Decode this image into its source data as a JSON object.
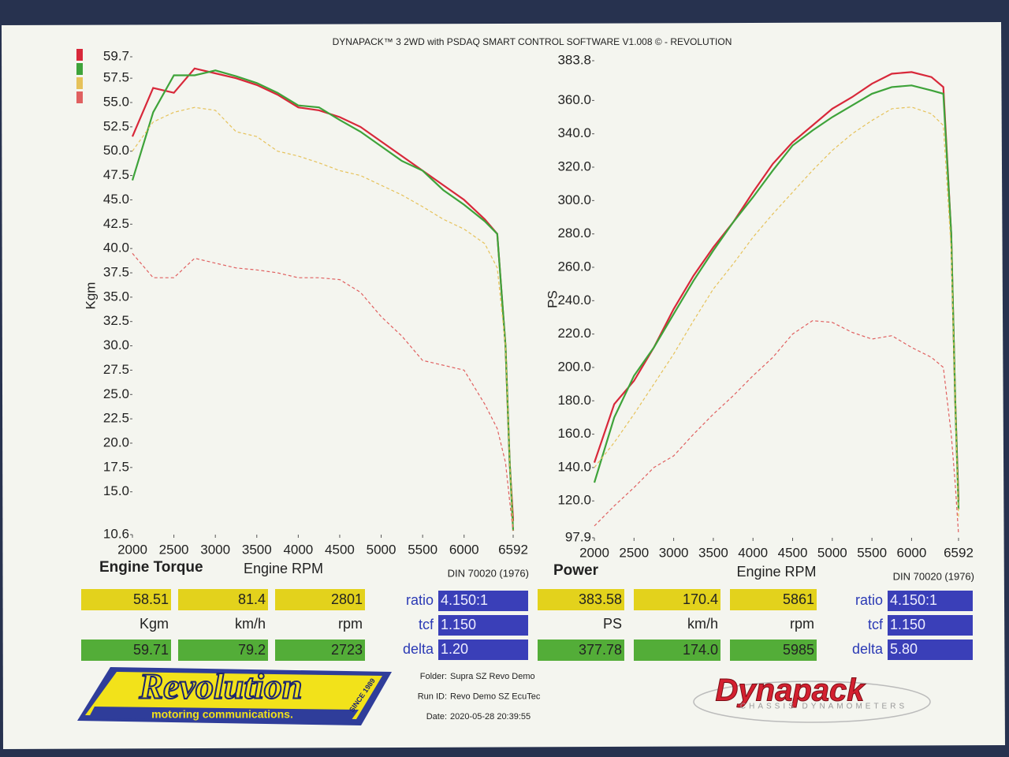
{
  "header": {
    "title": "DYNAPACK™ 3 2WD with PSDAQ SMART CONTROL SOFTWARE V1.008 © - REVOLUTION"
  },
  "chart_data": [
    {
      "type": "line",
      "title": "Engine Torque",
      "x_label": "Engine RPM",
      "y_label": "Kgm",
      "note": "DIN 70020 (1976)",
      "x": [
        2000,
        2250,
        2500,
        2750,
        3000,
        3250,
        3500,
        3750,
        4000,
        4250,
        4500,
        4750,
        5000,
        5250,
        5500,
        5750,
        6000,
        6250,
        6400,
        6500,
        6550,
        6592
      ],
      "xlim": [
        2000,
        6592
      ],
      "xticks": [
        2000,
        2500,
        3000,
        3500,
        4000,
        4500,
        5000,
        5500,
        6000,
        6592
      ],
      "ylim": [
        10.6,
        59.7
      ],
      "yticks": [
        59.7,
        57.5,
        {
          "value": 55,
          "label": "55.0"
        },
        52.5,
        {
          "value": 50,
          "label": "50.0"
        },
        47.5,
        {
          "value": 45,
          "label": "45.0"
        },
        42.5,
        {
          "value": 40,
          "label": "40.0"
        },
        37.5,
        {
          "value": 35,
          "label": "35.0"
        },
        32.5,
        {
          "value": 30,
          "label": "30.0"
        },
        27.5,
        {
          "value": 25,
          "label": "25.0"
        },
        22.5,
        {
          "value": 20,
          "label": "20.0"
        },
        17.5,
        {
          "value": 15,
          "label": "15.0"
        },
        10.6
      ],
      "grid": false,
      "series": [
        {
          "color": "#d8283a",
          "dashed": false,
          "values": [
            51.5,
            56.5,
            56,
            58.5,
            58,
            57.5,
            56.8,
            55.8,
            54.5,
            54.2,
            53.5,
            52.5,
            51,
            49.5,
            48,
            46.5,
            45,
            43,
            41.5,
            30,
            18,
            12
          ]
        },
        {
          "color": "#3ea33a",
          "dashed": false,
          "values": [
            47,
            54,
            57.8,
            57.8,
            58.3,
            57.7,
            57,
            56,
            54.7,
            54.5,
            53.2,
            52,
            50.5,
            49,
            48,
            46,
            44.5,
            42.8,
            41.5,
            30,
            18,
            11
          ]
        },
        {
          "color": "#e6c25a",
          "dashed": true,
          "values": [
            50,
            53,
            54,
            54.5,
            54.2,
            52,
            51.5,
            50,
            49.5,
            48.8,
            48,
            47.5,
            46.5,
            45.5,
            44.3,
            43,
            42,
            40.5,
            38,
            30,
            18,
            11
          ]
        },
        {
          "color": "#e06060",
          "dashed": true,
          "values": [
            39.5,
            37,
            37,
            39,
            38.5,
            38,
            37.8,
            37.5,
            37,
            37,
            36.8,
            35.5,
            33,
            31,
            28.5,
            28,
            27.5,
            24,
            21.5,
            18,
            14,
            11
          ]
        }
      ]
    },
    {
      "type": "line",
      "title": "Power",
      "x_label": "Engine RPM",
      "y_label": "PS",
      "note": "DIN 70020 (1976)",
      "x": [
        2000,
        2250,
        2500,
        2750,
        3000,
        3250,
        3500,
        3750,
        4000,
        4250,
        4500,
        4750,
        5000,
        5250,
        5500,
        5750,
        6000,
        6250,
        6400,
        6500,
        6550,
        6592
      ],
      "xlim": [
        2000,
        6592
      ],
      "xticks": [
        2000,
        2500,
        3000,
        3500,
        4000,
        4500,
        5000,
        5500,
        6000,
        6592
      ],
      "ylim": [
        97.9,
        383.8
      ],
      "yticks": [
        383.8,
        {
          "value": 360,
          "label": "360.0"
        },
        {
          "value": 340,
          "label": "340.0"
        },
        {
          "value": 320,
          "label": "320.0"
        },
        {
          "value": 300,
          "label": "300.0"
        },
        {
          "value": 280,
          "label": "280.0"
        },
        {
          "value": 260,
          "label": "260.0"
        },
        {
          "value": 240,
          "label": "240.0"
        },
        {
          "value": 220,
          "label": "220.0"
        },
        {
          "value": 200,
          "label": "200.0"
        },
        {
          "value": 180,
          "label": "180.0"
        },
        {
          "value": 160,
          "label": "160.0"
        },
        {
          "value": 140,
          "label": "140.0"
        },
        {
          "value": 120,
          "label": "120.0"
        },
        97.9
      ],
      "grid": false,
      "series": [
        {
          "color": "#d8283a",
          "dashed": false,
          "values": [
            143,
            178,
            192,
            212,
            235,
            255,
            272,
            287,
            305,
            322,
            335,
            345,
            355,
            362,
            370,
            376,
            377,
            374,
            368,
            280,
            180,
            120
          ]
        },
        {
          "color": "#3ea33a",
          "dashed": false,
          "values": [
            131,
            170,
            195,
            212,
            232,
            252,
            270,
            287,
            302,
            318,
            333,
            342,
            350,
            357,
            364,
            368,
            369,
            366,
            364,
            280,
            180,
            115
          ]
        },
        {
          "color": "#e6c25a",
          "dashed": true,
          "values": [
            140,
            155,
            172,
            190,
            208,
            228,
            247,
            262,
            278,
            292,
            305,
            318,
            330,
            340,
            348,
            355,
            356,
            352,
            345,
            270,
            180,
            110
          ]
        },
        {
          "color": "#e06060",
          "dashed": true,
          "values": [
            105,
            117,
            128,
            140,
            147,
            160,
            172,
            183,
            195,
            206,
            220,
            228,
            227,
            221,
            217,
            219,
            212,
            206,
            200,
            160,
            130,
            100
          ]
        }
      ]
    }
  ],
  "readouts": [
    {
      "run1": [
        "58.51",
        "81.4",
        "2801"
      ],
      "units": [
        "Kgm",
        "km/h",
        "rpm"
      ],
      "run2": [
        "59.71",
        "79.2",
        "2723"
      ],
      "params": [
        {
          "label": "ratio",
          "value": "4.150:1"
        },
        {
          "label": "tcf",
          "value": "1.150"
        },
        {
          "label": "delta",
          "value": "1.20"
        }
      ]
    },
    {
      "run1": [
        "383.58",
        "170.4",
        "5861"
      ],
      "units": [
        "PS",
        "km/h",
        "rpm"
      ],
      "run2": [
        "377.78",
        "174.0",
        "5985"
      ],
      "params": [
        {
          "label": "ratio",
          "value": "4.150:1"
        },
        {
          "label": "tcf",
          "value": "1.150"
        },
        {
          "label": "delta",
          "value": "5.80"
        }
      ]
    }
  ],
  "footer": [
    {
      "label": "Folder:",
      "value": "Supra SZ Revo Demo"
    },
    {
      "label": "Run ID:",
      "value": "Revo Demo SZ EcuTec"
    },
    {
      "label": "Date:",
      "value": "2020-05-28 20:39:55"
    }
  ],
  "logos": {
    "revolution": "Revolution",
    "revolution_tagline": "motoring communications.",
    "revolution_since": "SINCE 1989",
    "dynapack": "Dynapack",
    "dynapack_tagline": "CHASSIS DYNAMOMETERS"
  }
}
